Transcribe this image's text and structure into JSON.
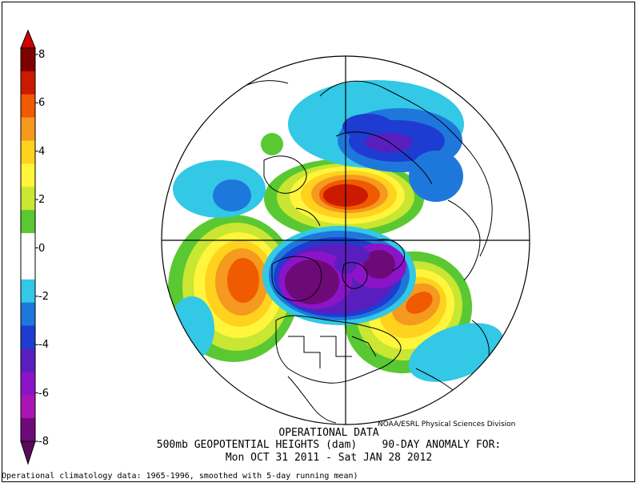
{
  "header": {
    "credit": "NOAA/ESRL Physical Sciences Division",
    "title_line1": "OPERATIONAL DATA",
    "title_line2": "500mb GEOPOTENTIAL HEIGHTS (dam)    90-DAY ANOMALY FOR:",
    "title_line3": "Mon OCT 31 2011 - Sat JAN 28 2012",
    "footnote": "Operational climatology data: 1965-1996, smoothed with 5-day running mean)"
  },
  "colorbar": {
    "ticks": [
      "8",
      "6",
      "4",
      "2",
      "0",
      "-2",
      "-4",
      "-6",
      "-8"
    ],
    "colors": [
      "#7f0000",
      "#cc1a00",
      "#f05a00",
      "#f59a1e",
      "#ffd21e",
      "#fff53c",
      "#c8e632",
      "#5ac832",
      "#ffffff",
      "#ffffff",
      "#32c8e6",
      "#1e78dc",
      "#1e3cd2",
      "#5a1ebe",
      "#8c14c8",
      "#aa14b4",
      "#6e0a78"
    ],
    "top_color": "#d20000",
    "bottom_color": "#5a0a5a"
  },
  "map": {
    "projection": "north-polar-stereographic",
    "variable": "500mb geopotential height anomaly",
    "units": "dam"
  }
}
